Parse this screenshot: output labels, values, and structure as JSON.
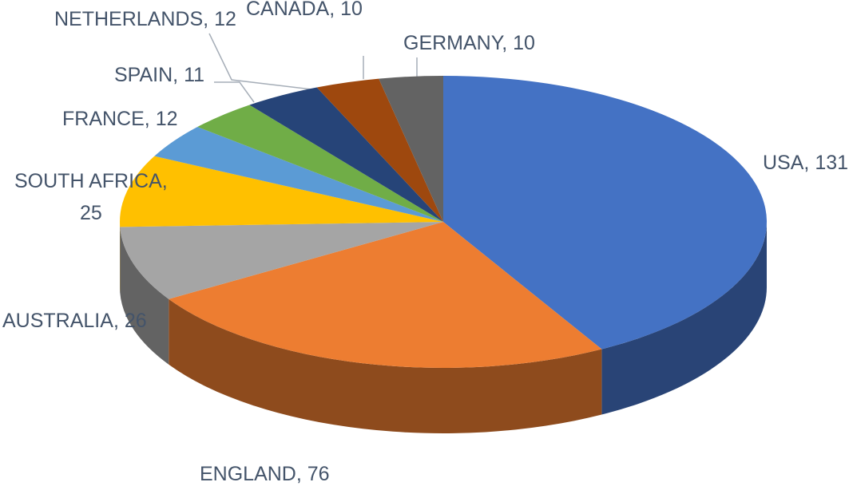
{
  "chart_data": {
    "type": "pie",
    "categories": [
      "USA",
      "ENGLAND",
      "AUSTRALIA",
      "SOUTH AFRICA",
      "FRANCE",
      "SPAIN",
      "NETHERLANDS",
      "CANADA",
      "GERMANY"
    ],
    "values": [
      131,
      76,
      26,
      25,
      12,
      11,
      12,
      10,
      10
    ],
    "colors": [
      "#4472c4",
      "#ed7d31",
      "#a5a5a5",
      "#ffc000",
      "#5b9bd5",
      "#70ad47",
      "#264478",
      "#9e480e",
      "#636363"
    ],
    "label_separator": ", "
  }
}
